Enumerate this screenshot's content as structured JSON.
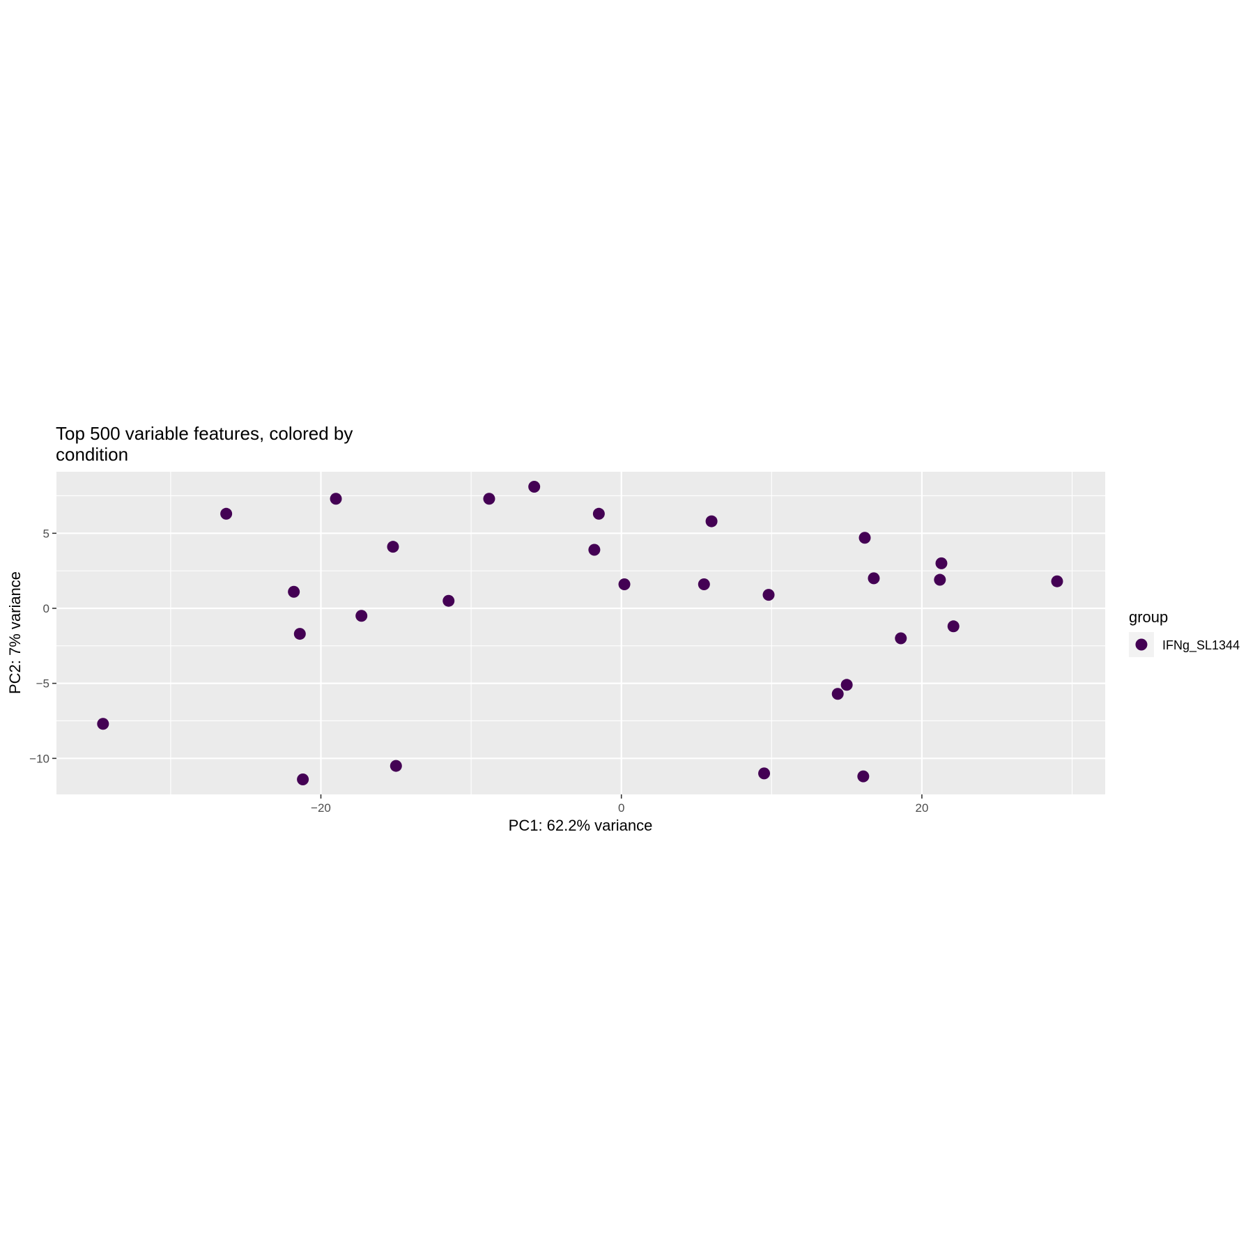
{
  "chart_data": {
    "type": "scatter",
    "title_lines": [
      "Top 500 variable features, colored by",
      "condition"
    ],
    "xlabel": "PC1: 62.2% variance",
    "ylabel": "PC2: 7% variance",
    "xlim": [
      -37.6,
      32.2
    ],
    "ylim": [
      -12.4,
      9.1
    ],
    "x_ticks": [
      -20,
      0,
      20
    ],
    "x_tick_labels": [
      "−20",
      "0",
      "20"
    ],
    "x_minor_ticks": [
      -30,
      -10,
      10,
      30
    ],
    "y_ticks": [
      -10,
      -5,
      0,
      5
    ],
    "y_tick_labels": [
      "−10",
      "−5",
      "0",
      "5"
    ],
    "y_minor_ticks": [
      -7.5,
      -2.5,
      2.5,
      7.5
    ],
    "grid": true,
    "panel_color": "#ebebeb",
    "point_color": "#440154",
    "legend": {
      "title": "group",
      "position": "right",
      "entries": [
        {
          "label": "IFNg_SL1344",
          "color": "#440154"
        }
      ]
    },
    "series": [
      {
        "name": "IFNg_SL1344",
        "points": [
          {
            "x": -34.5,
            "y": -7.7
          },
          {
            "x": -26.3,
            "y": 6.3
          },
          {
            "x": -21.8,
            "y": 1.1
          },
          {
            "x": -21.4,
            "y": -1.7
          },
          {
            "x": -19.0,
            "y": 7.3
          },
          {
            "x": -17.3,
            "y": -0.5
          },
          {
            "x": -21.2,
            "y": -11.4
          },
          {
            "x": -15.2,
            "y": 4.1
          },
          {
            "x": -15.0,
            "y": -10.5
          },
          {
            "x": -11.5,
            "y": 0.5
          },
          {
            "x": -8.8,
            "y": 7.3
          },
          {
            "x": -5.8,
            "y": 8.1
          },
          {
            "x": -1.5,
            "y": 6.3
          },
          {
            "x": -1.8,
            "y": 3.9
          },
          {
            "x": 0.2,
            "y": 1.6
          },
          {
            "x": 5.5,
            "y": 1.6
          },
          {
            "x": 6.0,
            "y": 5.8
          },
          {
            "x": 9.8,
            "y": 0.9
          },
          {
            "x": 9.5,
            "y": -11.0
          },
          {
            "x": 14.4,
            "y": -5.7
          },
          {
            "x": 15.0,
            "y": -5.1
          },
          {
            "x": 16.2,
            "y": 4.7
          },
          {
            "x": 16.8,
            "y": 2.0
          },
          {
            "x": 16.1,
            "y": -11.2
          },
          {
            "x": 18.6,
            "y": -2.0
          },
          {
            "x": 21.3,
            "y": 3.0
          },
          {
            "x": 21.2,
            "y": 1.9
          },
          {
            "x": 22.1,
            "y": -1.2
          },
          {
            "x": 29.0,
            "y": 1.8
          }
        ]
      }
    ]
  }
}
